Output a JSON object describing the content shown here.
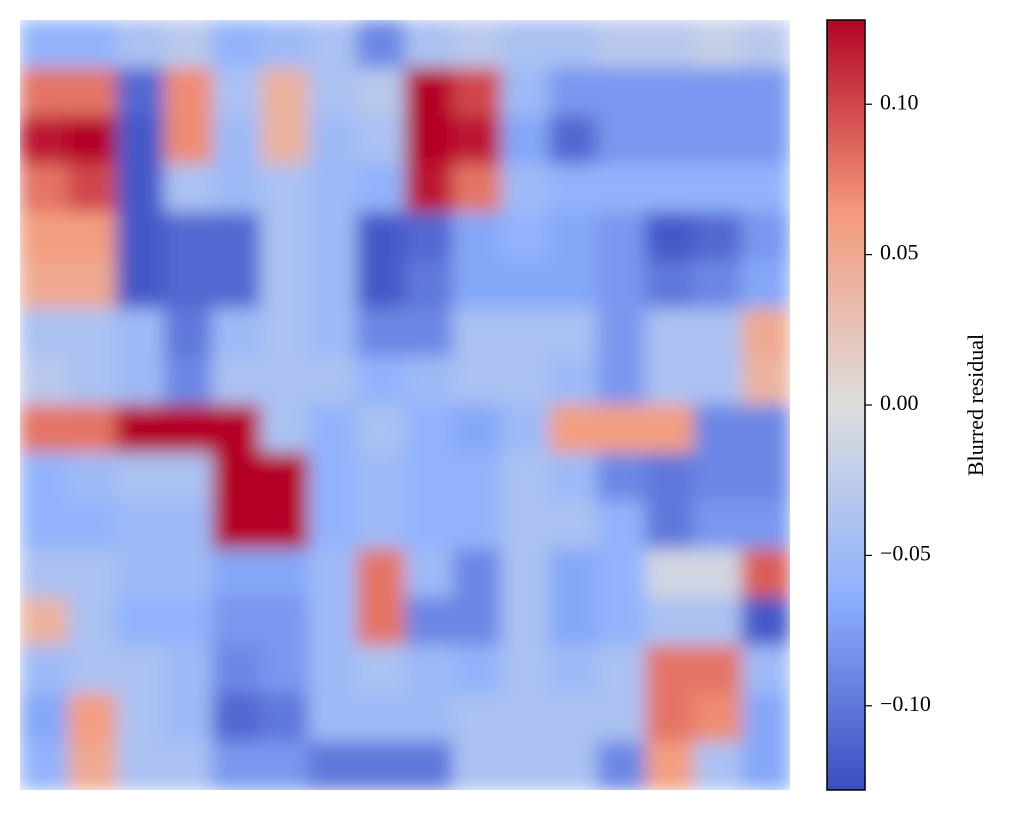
{
  "chart_data": {
    "type": "heatmap",
    "colormap": "coolwarm",
    "colorbar_label": "Blurred residual",
    "zlim": [
      -0.128,
      0.128
    ],
    "zticks": [
      {
        "value": -0.1,
        "label": "−0.10"
      },
      {
        "value": -0.05,
        "label": "−0.05"
      },
      {
        "value": 0,
        "label": "0.00"
      },
      {
        "value": 0.05,
        "label": "0.05"
      },
      {
        "value": 0.1,
        "label": "0.10"
      }
    ],
    "values": [
      [
        -0.06,
        -0.06,
        -0.04,
        -0.03,
        -0.06,
        -0.05,
        -0.04,
        -0.09,
        -0.04,
        -0.03,
        -0.04,
        -0.04,
        -0.03,
        -0.03,
        -0.02,
        -0.03
      ],
      [
        0.08,
        0.08,
        -0.11,
        0.07,
        -0.04,
        0.04,
        -0.04,
        -0.03,
        0.13,
        0.1,
        -0.05,
        -0.08,
        -0.08,
        -0.08,
        -0.08,
        -0.08
      ],
      [
        0.12,
        0.13,
        -0.12,
        0.07,
        -0.05,
        0.04,
        -0.05,
        -0.04,
        0.13,
        0.12,
        -0.07,
        -0.11,
        -0.08,
        -0.08,
        -0.08,
        -0.08
      ],
      [
        0.08,
        0.1,
        -0.12,
        -0.04,
        -0.05,
        -0.04,
        -0.05,
        -0.06,
        0.12,
        0.08,
        -0.05,
        -0.06,
        -0.06,
        -0.06,
        -0.06,
        -0.06
      ],
      [
        0.06,
        0.06,
        -0.12,
        -0.11,
        -0.11,
        -0.04,
        -0.05,
        -0.12,
        -0.11,
        -0.07,
        -0.06,
        -0.07,
        -0.08,
        -0.12,
        -0.11,
        -0.08
      ],
      [
        0.05,
        0.05,
        -0.12,
        -0.11,
        -0.11,
        -0.04,
        -0.05,
        -0.12,
        -0.1,
        -0.07,
        -0.07,
        -0.07,
        -0.08,
        -0.1,
        -0.09,
        -0.07
      ],
      [
        -0.04,
        -0.04,
        -0.05,
        -0.1,
        -0.05,
        -0.04,
        -0.05,
        -0.09,
        -0.09,
        -0.04,
        -0.04,
        -0.04,
        -0.08,
        -0.04,
        -0.04,
        0.05
      ],
      [
        -0.03,
        -0.04,
        -0.05,
        -0.09,
        -0.04,
        -0.04,
        -0.04,
        -0.06,
        -0.05,
        -0.04,
        -0.04,
        -0.05,
        -0.08,
        -0.04,
        -0.04,
        0.04
      ],
      [
        0.08,
        0.08,
        0.13,
        0.13,
        0.13,
        -0.04,
        -0.06,
        -0.04,
        -0.06,
        -0.07,
        -0.05,
        0.06,
        0.06,
        0.06,
        -0.09,
        -0.09
      ],
      [
        -0.06,
        -0.05,
        -0.04,
        -0.04,
        0.13,
        0.13,
        -0.06,
        -0.05,
        -0.06,
        -0.06,
        -0.04,
        -0.05,
        -0.09,
        -0.1,
        -0.09,
        -0.09
      ],
      [
        -0.06,
        -0.06,
        -0.05,
        -0.05,
        0.13,
        0.13,
        -0.06,
        -0.05,
        -0.06,
        -0.06,
        -0.04,
        -0.04,
        -0.06,
        -0.1,
        -0.08,
        -0.08
      ],
      [
        -0.04,
        -0.04,
        -0.05,
        -0.05,
        -0.07,
        -0.07,
        -0.05,
        0.08,
        -0.05,
        -0.09,
        -0.04,
        -0.07,
        -0.06,
        -0.01,
        -0.01,
        0.09
      ],
      [
        0.04,
        -0.04,
        -0.06,
        -0.06,
        -0.08,
        -0.08,
        -0.05,
        0.08,
        -0.09,
        -0.09,
        -0.04,
        -0.07,
        -0.06,
        -0.04,
        -0.04,
        -0.12
      ],
      [
        -0.05,
        -0.04,
        -0.04,
        -0.05,
        -0.09,
        -0.08,
        -0.05,
        -0.04,
        -0.05,
        -0.06,
        -0.04,
        -0.05,
        -0.04,
        0.08,
        0.08,
        -0.05
      ],
      [
        -0.07,
        0.06,
        -0.04,
        -0.05,
        -0.11,
        -0.1,
        -0.05,
        -0.05,
        -0.05,
        -0.04,
        -0.04,
        -0.04,
        -0.04,
        0.08,
        0.07,
        -0.07
      ],
      [
        -0.06,
        0.05,
        -0.04,
        -0.04,
        -0.08,
        -0.08,
        -0.1,
        -0.1,
        -0.1,
        -0.04,
        -0.04,
        -0.04,
        -0.09,
        0.06,
        -0.04,
        -0.07
      ]
    ]
  }
}
